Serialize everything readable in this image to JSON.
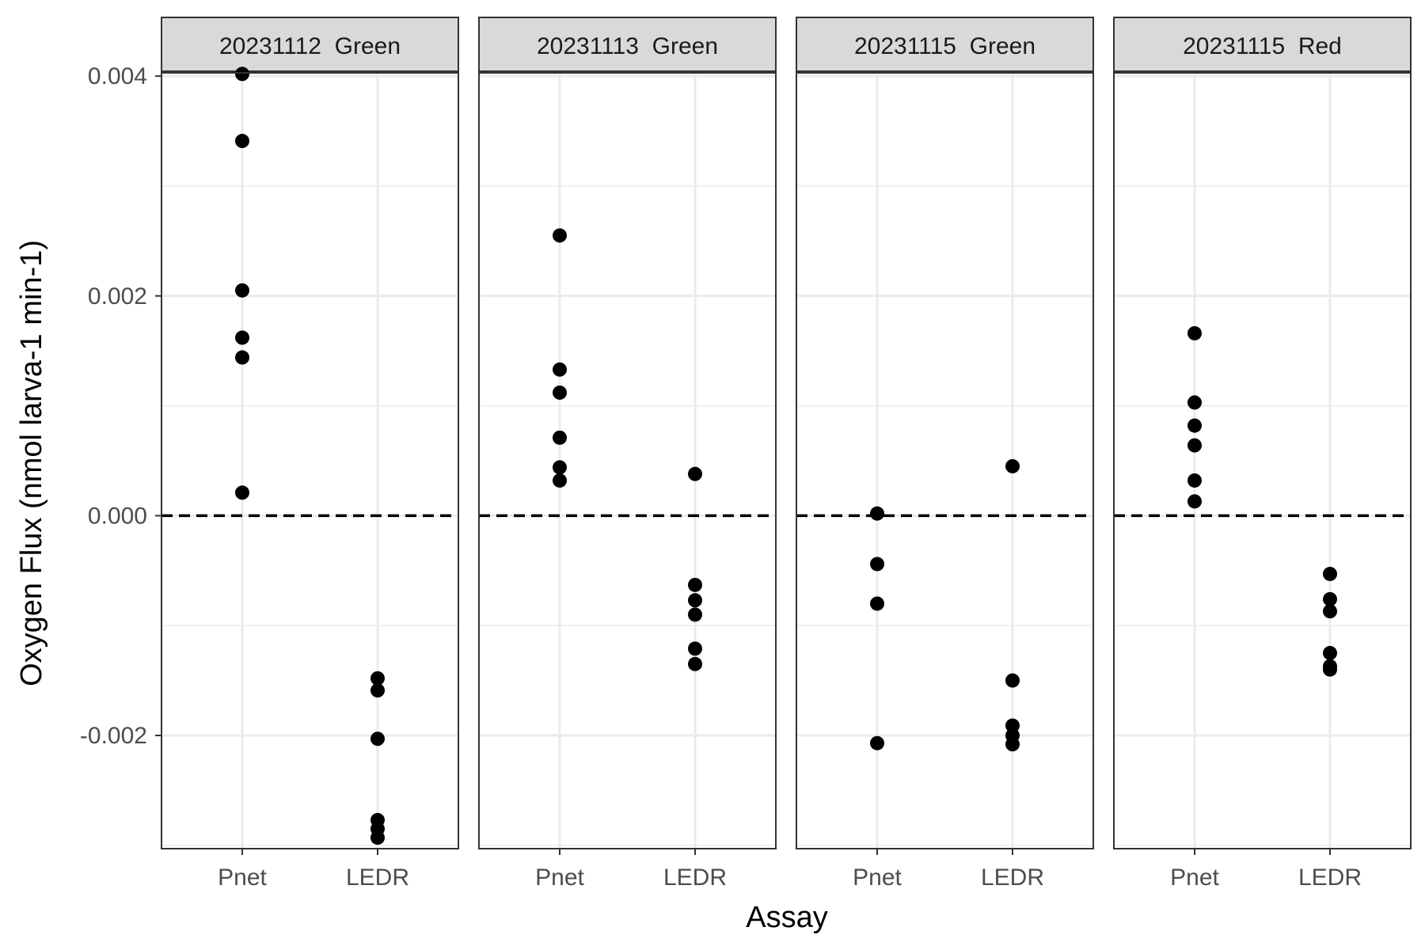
{
  "chart_data": {
    "type": "scatter",
    "xlabel": "Assay",
    "ylabel": "Oxygen Flux (nmol larva-1 min-1)",
    "ylim": [
      -0.00303,
      0.00403
    ],
    "yticks": [
      -0.002,
      0.0,
      0.002,
      0.004
    ],
    "ytick_labels": [
      "-0.002",
      "0.000",
      "0.002",
      "0.004"
    ],
    "categories": [
      "Pnet",
      "LEDR"
    ],
    "reference_line": 0,
    "grid": true,
    "panels": [
      {
        "strip_label": "20231112  Green",
        "points": {
          "Pnet": [
            0.00402,
            0.00341,
            0.00205,
            0.00162,
            0.00144,
            0.00021
          ],
          "LEDR": [
            -0.00148,
            -0.00159,
            -0.00203,
            -0.00277,
            -0.00285,
            -0.00293
          ]
        }
      },
      {
        "strip_label": "20231113  Green",
        "points": {
          "Pnet": [
            0.00255,
            0.00133,
            0.00112,
            0.00071,
            0.00044,
            0.00032
          ],
          "LEDR": [
            0.00038,
            -0.00063,
            -0.00077,
            -0.0009,
            -0.00121,
            -0.00135
          ]
        }
      },
      {
        "strip_label": "20231115  Green",
        "points": {
          "Pnet": [
            2e-05,
            -0.00044,
            -0.0008,
            -0.00207
          ],
          "LEDR": [
            0.00045,
            -0.0015,
            -0.00191,
            -0.002,
            -0.00208
          ]
        }
      },
      {
        "strip_label": "20231115  Red",
        "points": {
          "Pnet": [
            0.00166,
            0.00103,
            0.00082,
            0.00064,
            0.00032,
            0.00013
          ],
          "LEDR": [
            -0.00053,
            -0.00076,
            -0.00087,
            -0.00125,
            -0.00137,
            -0.0014
          ]
        }
      }
    ]
  }
}
